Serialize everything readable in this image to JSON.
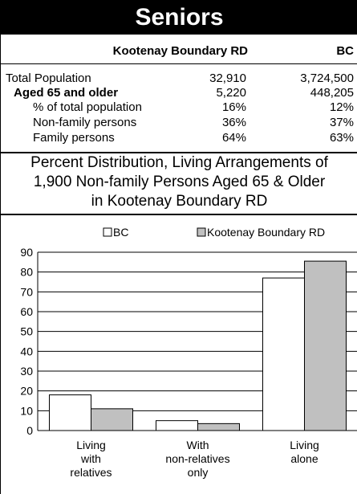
{
  "title": "Seniors",
  "stats": {
    "header_region": "Kootenay Boundary RD",
    "header_bc": "BC",
    "rows": [
      {
        "label": "Total Population",
        "region": "32,910",
        "bc": "3,724,500"
      },
      {
        "label": "Aged 65 and older",
        "region": "5,220",
        "bc": "448,205"
      },
      {
        "label": "% of total population",
        "region": "16%",
        "bc": "12%"
      },
      {
        "label": "Non-family persons",
        "region": "36%",
        "bc": "37%"
      },
      {
        "label": "Family persons",
        "region": "64%",
        "bc": "63%"
      }
    ]
  },
  "distribution_title": {
    "line1": "Percent Distribution, Living Arrangements of",
    "line2": "1,900 Non-family Persons Aged 65 & Older",
    "line3": "in Kootenay Boundary RD"
  },
  "colors": {
    "bc": "#ffffff",
    "region": "#c0c0c0"
  },
  "chart_data": {
    "type": "bar",
    "categories": [
      [
        "Living",
        "with",
        "relatives"
      ],
      [
        "With",
        "non-relatives",
        "only"
      ],
      [
        "Living",
        "alone"
      ]
    ],
    "series": [
      {
        "name": "BC",
        "values": [
          18,
          5,
          77
        ]
      },
      {
        "name": "Kootenay Boundary RD",
        "values": [
          11,
          3.5,
          85.5
        ]
      }
    ],
    "yticks": [
      0,
      10,
      20,
      30,
      40,
      50,
      60,
      70,
      80,
      90
    ],
    "ylim": [
      0,
      90
    ],
    "grid": true,
    "legend": "top"
  }
}
